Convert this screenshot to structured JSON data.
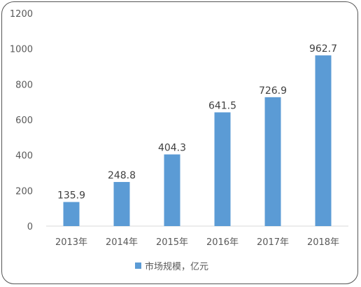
{
  "chart_data": {
    "type": "bar",
    "categories": [
      "2013年",
      "2014年",
      "2015年",
      "2016年",
      "2017年",
      "2018年"
    ],
    "series": [
      {
        "name": "市场规模，亿元",
        "values": [
          135.9,
          248.8,
          404.3,
          641.5,
          726.9,
          962.7
        ]
      }
    ],
    "data_labels": [
      "135.9",
      "248.8",
      "404.3",
      "641.5",
      "726.9",
      "962.7"
    ],
    "yticks": [
      "0",
      "200",
      "400",
      "600",
      "800",
      "1000",
      "1200"
    ],
    "ylim": [
      0,
      1200
    ],
    "grid": false,
    "legend_position": "bottom",
    "colors": {
      "bar": "#5b9bd5",
      "axis": "#d9d9d9"
    }
  }
}
